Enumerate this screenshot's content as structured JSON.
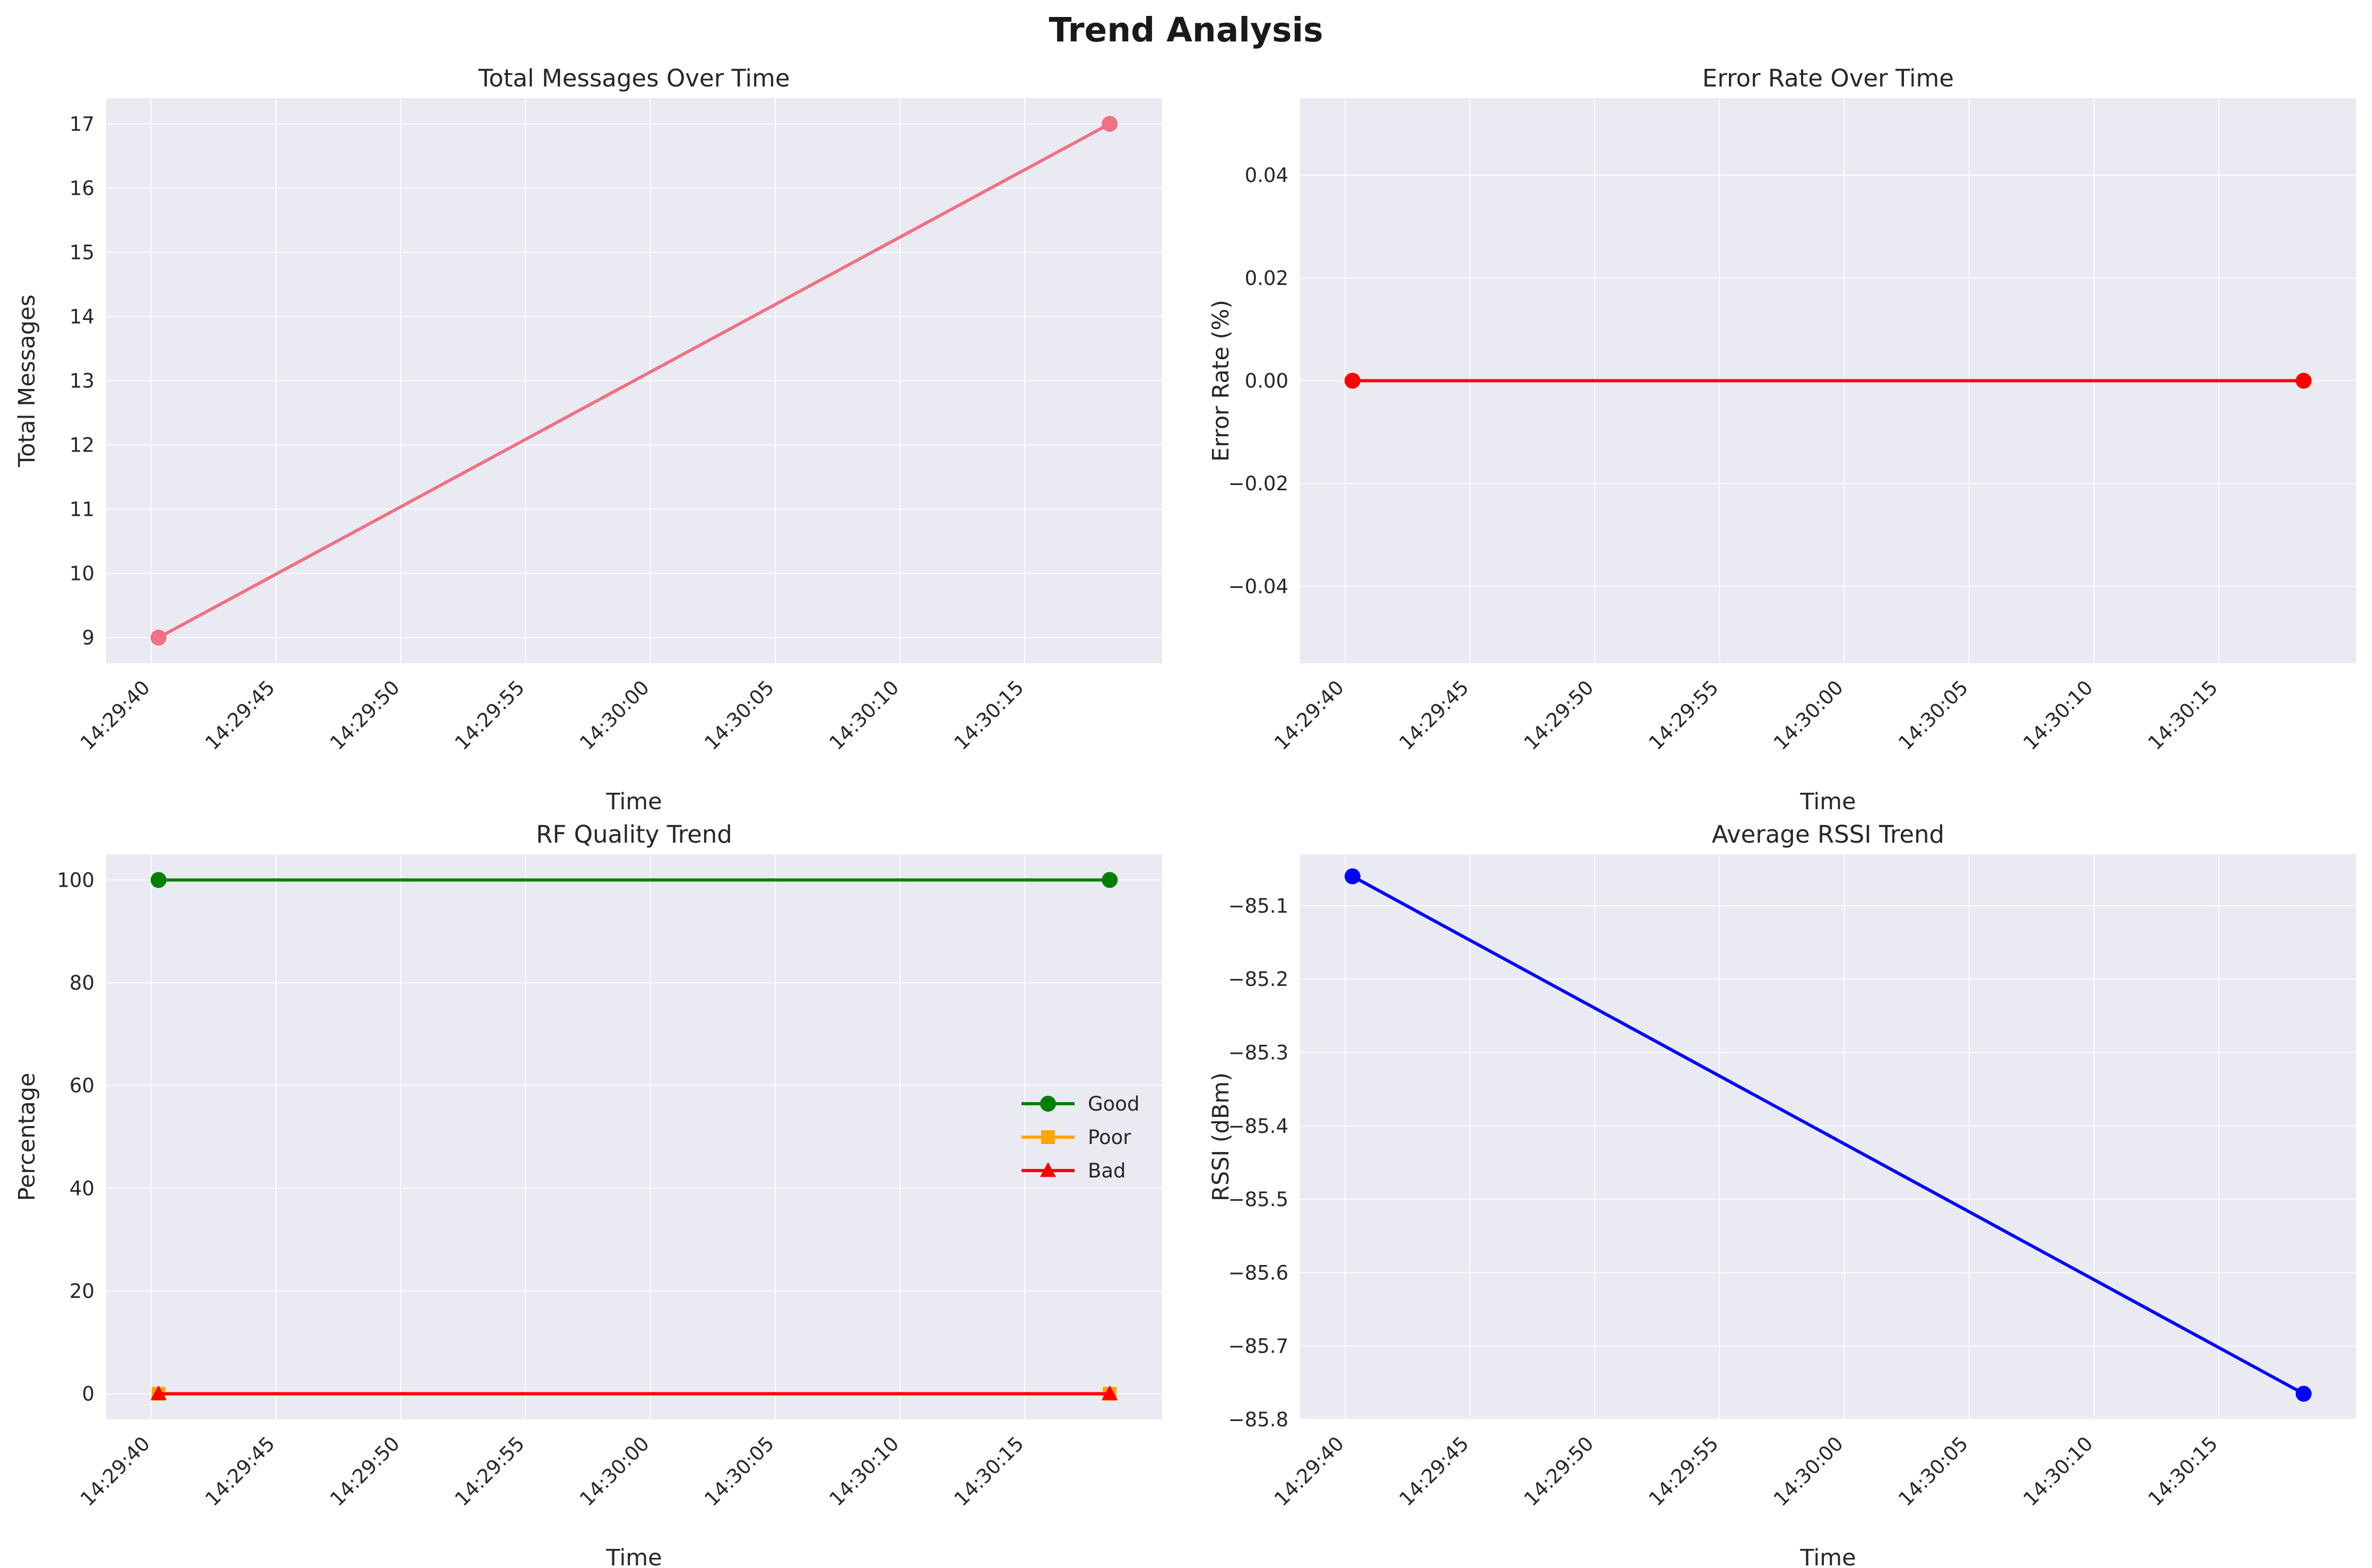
{
  "title": "Trend Analysis",
  "chart_data": [
    {
      "type": "line",
      "title": "Total Messages Over Time",
      "xlabel": "Time",
      "ylabel": "Total Messages",
      "x_ticks": [
        "14:29:40",
        "14:29:45",
        "14:29:50",
        "14:29:55",
        "14:30:00",
        "14:30:05",
        "14:30:10",
        "14:30:15"
      ],
      "y_ticks": [
        "9",
        "10",
        "11",
        "12",
        "13",
        "14",
        "15",
        "16",
        "17"
      ],
      "y_tick_values": [
        9,
        10,
        11,
        12,
        13,
        14,
        15,
        16,
        17
      ],
      "xlim": [
        "14:29:38.2",
        "14:30:20.5"
      ],
      "ylim": [
        8.6,
        17.4
      ],
      "grid": true,
      "series": [
        {
          "x": [
            "14:29:40.3",
            "14:30:18.4"
          ],
          "values": [
            9,
            17
          ],
          "color": "#f07086",
          "marker": "circle"
        }
      ]
    },
    {
      "type": "line",
      "title": "Error Rate Over Time",
      "xlabel": "Time",
      "ylabel": "Error Rate (%)",
      "x_ticks": [
        "14:29:40",
        "14:29:45",
        "14:29:50",
        "14:29:55",
        "14:30:00",
        "14:30:05",
        "14:30:10",
        "14:30:15"
      ],
      "y_ticks": [
        "0.04",
        "0.02",
        "0.00",
        "−0.02",
        "−0.04"
      ],
      "y_tick_values": [
        0.04,
        0.02,
        0.0,
        -0.02,
        -0.04
      ],
      "xlim": [
        "14:29:38.2",
        "14:30:20.5"
      ],
      "ylim": [
        -0.055,
        0.055
      ],
      "grid": true,
      "series": [
        {
          "x": [
            "14:29:40.3",
            "14:30:18.4"
          ],
          "values": [
            0,
            0
          ],
          "color": "#ff0000",
          "marker": "circle"
        }
      ]
    },
    {
      "type": "line",
      "title": "RF Quality Trend",
      "xlabel": "Time",
      "ylabel": "Percentage",
      "x_ticks": [
        "14:29:40",
        "14:29:45",
        "14:29:50",
        "14:29:55",
        "14:30:00",
        "14:30:05",
        "14:30:10",
        "14:30:15"
      ],
      "y_ticks": [
        "0",
        "20",
        "40",
        "60",
        "80",
        "100"
      ],
      "y_tick_values": [
        0,
        20,
        40,
        60,
        80,
        100
      ],
      "xlim": [
        "14:29:38.2",
        "14:30:20.5"
      ],
      "ylim": [
        -5,
        105
      ],
      "grid": true,
      "legend": "center-right",
      "series": [
        {
          "name": "Good",
          "x": [
            "14:29:40.3",
            "14:30:18.4"
          ],
          "values": [
            100,
            100
          ],
          "color": "#008000",
          "marker": "circle"
        },
        {
          "name": "Poor",
          "x": [
            "14:29:40.3",
            "14:30:18.4"
          ],
          "values": [
            0,
            0
          ],
          "color": "#ffa500",
          "marker": "square"
        },
        {
          "name": "Bad",
          "x": [
            "14:29:40.3",
            "14:30:18.4"
          ],
          "values": [
            0,
            0
          ],
          "color": "#ff0000",
          "marker": "triangle"
        }
      ]
    },
    {
      "type": "line",
      "title": "Average RSSI Trend",
      "xlabel": "Time",
      "ylabel": "RSSI (dBm)",
      "x_ticks": [
        "14:29:40",
        "14:29:45",
        "14:29:50",
        "14:29:55",
        "14:30:00",
        "14:30:05",
        "14:30:10",
        "14:30:15"
      ],
      "y_ticks": [
        "−85.1",
        "−85.2",
        "−85.3",
        "−85.4",
        "−85.5",
        "−85.6",
        "−85.7",
        "−85.8"
      ],
      "y_tick_values": [
        -85.1,
        -85.2,
        -85.3,
        -85.4,
        -85.5,
        -85.6,
        -85.7,
        -85.8
      ],
      "xlim": [
        "14:29:38.2",
        "14:30:20.5"
      ],
      "ylim": [
        -85.8,
        -85.03
      ],
      "grid": true,
      "series": [
        {
          "x": [
            "14:29:40.3",
            "14:30:18.4"
          ],
          "values": [
            -85.06,
            -85.765
          ],
          "color": "#0000ff",
          "marker": "circle"
        }
      ]
    }
  ]
}
